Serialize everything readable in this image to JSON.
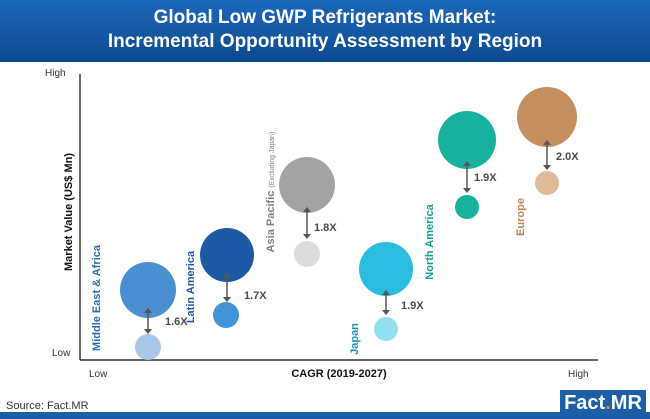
{
  "header": {
    "title_line1": "Global Low GWP Refrigerants Market:",
    "title_line2": "Incremental Opportunity Assessment by Region"
  },
  "chart_data": {
    "type": "scatter",
    "subtype": "bubble",
    "xlabel": "CAGR (2019-2027)",
    "ylabel": "Market Value (US$ Mn)",
    "x_tick_labels": [
      "Low",
      "High"
    ],
    "y_tick_labels": [
      "Low",
      "High"
    ],
    "grid": false,
    "series": [
      {
        "name": "Middle East & Africa",
        "sublabel": "",
        "color": "#4a8fd0",
        "small_color": "#a8c8ea",
        "multiplier": "1.6X",
        "label_color": "#2a6cb0"
      },
      {
        "name": "Latin America",
        "sublabel": "",
        "color": "#1c5aa6",
        "small_color": "#3f95d8",
        "multiplier": "1.7X",
        "label_color": "#1c5aa6"
      },
      {
        "name": "Asia Pacific",
        "sublabel": "(Excluding Japan)",
        "color": "#a3a3a3",
        "small_color": "#dcdcdc",
        "multiplier": "1.8X",
        "label_color": "#7f7f7f"
      },
      {
        "name": "Japan",
        "sublabel": "",
        "color": "#2bbde0",
        "small_color": "#93dff2",
        "multiplier": "1.9X",
        "label_color": "#1f8fbf"
      },
      {
        "name": "North America",
        "sublabel": "",
        "color": "#16b29d",
        "small_color": "#16b29d",
        "multiplier": "1.9X",
        "label_color": "#12a090"
      },
      {
        "name": "Europe",
        "sublabel": "",
        "color": "#c48e5e",
        "small_color": "#e0bb98",
        "multiplier": "2.0X",
        "label_color": "#c08550"
      }
    ]
  },
  "footer": {
    "source": "Source: Fact.MR",
    "logo_main": "Fact",
    "logo_dot": ".",
    "logo_suffix": "MR"
  }
}
